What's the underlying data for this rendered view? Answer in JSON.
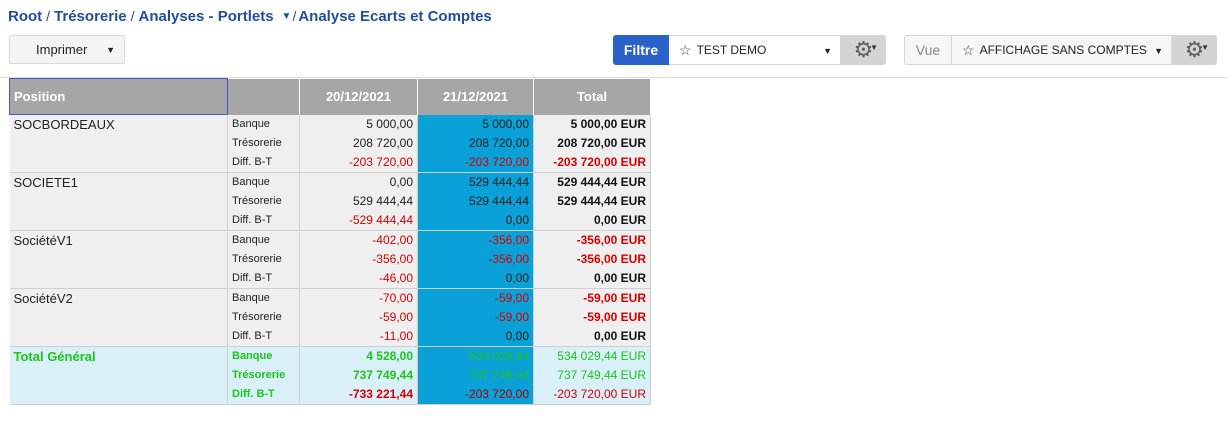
{
  "breadcrumb": {
    "items": [
      "Root",
      "Trésorerie",
      "Analyses - Portlets",
      "Analyse Ecarts et Comptes"
    ],
    "separator": "/"
  },
  "toolbar": {
    "print_label": "Imprimer",
    "filter_label": "Filtre",
    "filter_value": "TEST DEMO",
    "view_label": "Vue",
    "view_value": "AFFICHAGE SANS COMPTES"
  },
  "table": {
    "headers": {
      "position": "Position",
      "type": "",
      "col1": "20/12/2021",
      "col2": "21/12/2021",
      "total": "Total"
    },
    "groups": [
      {
        "name": "SOCBORDEAUX",
        "rows": [
          {
            "type": "Banque",
            "col1": "5 000,00",
            "col2": "5 000,00",
            "total": "5 000,00 EUR",
            "neg": false
          },
          {
            "type": "Trésorerie",
            "col1": "208 720,00",
            "col2": "208 720,00",
            "total": "208 720,00 EUR",
            "neg": false
          },
          {
            "type": "Diff. B-T",
            "col1": "-203 720,00",
            "col2": "-203 720,00",
            "total": "-203 720,00 EUR",
            "neg": true
          }
        ]
      },
      {
        "name": "SOCIETE1",
        "rows": [
          {
            "type": "Banque",
            "col1": "0,00",
            "col2": "529 444,44",
            "total": "529 444,44 EUR",
            "neg": false
          },
          {
            "type": "Trésorerie",
            "col1": "529 444,44",
            "col2": "529 444,44",
            "total": "529 444,44 EUR",
            "neg": false
          },
          {
            "type": "Diff. B-T",
            "col1": "-529 444,44",
            "col2": "0,00",
            "total": "0,00 EUR",
            "neg": true,
            "neg2": false,
            "negt": false
          }
        ]
      },
      {
        "name": "SociétéV1",
        "rows": [
          {
            "type": "Banque",
            "col1": "-402,00",
            "col2": "-356,00",
            "total": "-356,00 EUR",
            "neg": true
          },
          {
            "type": "Trésorerie",
            "col1": "-356,00",
            "col2": "-356,00",
            "total": "-356,00 EUR",
            "neg": true
          },
          {
            "type": "Diff. B-T",
            "col1": "-46,00",
            "col2": "0,00",
            "total": "0,00 EUR",
            "neg": true,
            "neg2": false,
            "negt": false
          }
        ]
      },
      {
        "name": "SociétéV2",
        "rows": [
          {
            "type": "Banque",
            "col1": "-70,00",
            "col2": "-59,00",
            "total": "-59,00 EUR",
            "neg": true
          },
          {
            "type": "Trésorerie",
            "col1": "-59,00",
            "col2": "-59,00",
            "total": "-59,00 EUR",
            "neg": true
          },
          {
            "type": "Diff. B-T",
            "col1": "-11,00",
            "col2": "0,00",
            "total": "0,00 EUR",
            "neg": true,
            "neg2": false,
            "negt": false
          }
        ]
      }
    ],
    "total": {
      "name": "Total Général",
      "rows": [
        {
          "type": "Banque",
          "col1": "4 528,00",
          "col2": "534 029,44",
          "total": "534 029,44 EUR",
          "neg": false
        },
        {
          "type": "Trésorerie",
          "col1": "737 749,44",
          "col2": "737 749,44",
          "total": "737 749,44 EUR",
          "neg": false
        },
        {
          "type": "Diff. B-T",
          "col1": "-733 221,44",
          "col2": "-203 720,00",
          "total": "-203 720,00 EUR",
          "neg": true
        }
      ]
    }
  },
  "colors": {
    "accent": "#2a62c9",
    "highlight_column": "#0aa0d8",
    "header_bg": "#a6a6a6",
    "negative": "#d60000",
    "total": "#1cc41c"
  }
}
